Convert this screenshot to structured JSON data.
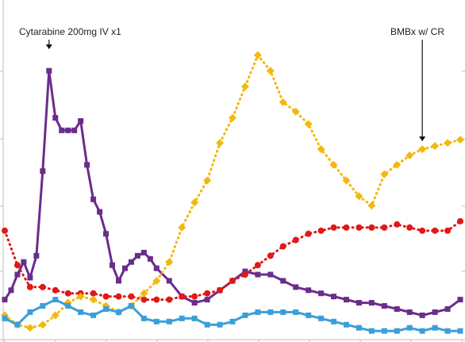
{
  "chart_data": {
    "type": "line",
    "title": "",
    "xlabel": "",
    "ylabel": "",
    "grid": false,
    "legend": "none",
    "ylim": [
      0,
      100
    ],
    "x": [
      0,
      1,
      2,
      3,
      4,
      5,
      6,
      7,
      8,
      9,
      10,
      11,
      12,
      13,
      14,
      15,
      16,
      17,
      18,
      19,
      20,
      21,
      22,
      23,
      24,
      25,
      26,
      27,
      28,
      29,
      30,
      31,
      32,
      33,
      34,
      35,
      36,
      37,
      38,
      39,
      40,
      41,
      42,
      43,
      44,
      45,
      46,
      47,
      48,
      49,
      50,
      51,
      52,
      53,
      54,
      55,
      56,
      57,
      58,
      59,
      60,
      61,
      62,
      63,
      64,
      65,
      66,
      67,
      68,
      69,
      70
    ],
    "series": [
      {
        "color": "#6A2D8C",
        "style": "solid",
        "marker": "square",
        "points": [
          [
            0,
            12
          ],
          [
            1,
            15
          ],
          [
            2,
            20
          ],
          [
            3,
            24
          ],
          [
            4,
            19
          ],
          [
            5,
            26
          ],
          [
            6,
            53
          ],
          [
            7,
            85
          ],
          [
            8,
            70
          ],
          [
            9,
            66
          ],
          [
            10,
            66
          ],
          [
            11,
            66
          ],
          [
            12,
            69
          ],
          [
            13,
            55
          ],
          [
            14,
            44
          ],
          [
            15,
            40
          ],
          [
            16,
            33
          ],
          [
            17,
            23
          ],
          [
            18,
            18
          ],
          [
            19,
            22
          ],
          [
            20,
            24
          ],
          [
            21,
            26
          ],
          [
            22,
            27
          ],
          [
            23,
            25
          ],
          [
            24,
            22
          ],
          [
            26,
            18
          ],
          [
            28,
            13
          ],
          [
            30,
            11
          ],
          [
            32,
            12
          ],
          [
            34,
            15
          ],
          [
            36,
            18
          ],
          [
            38,
            21
          ],
          [
            40,
            20
          ],
          [
            42,
            20
          ],
          [
            44,
            18
          ],
          [
            46,
            16
          ],
          [
            48,
            15
          ],
          [
            50,
            14
          ],
          [
            52,
            13
          ],
          [
            54,
            12
          ],
          [
            56,
            11
          ],
          [
            58,
            11
          ],
          [
            60,
            10
          ],
          [
            62,
            9
          ],
          [
            64,
            8
          ],
          [
            66,
            7
          ],
          [
            68,
            8
          ],
          [
            70,
            9
          ],
          [
            72,
            12
          ]
        ]
      },
      {
        "color": "#E01818",
        "style": "dotted",
        "marker": "circle",
        "points": [
          [
            0,
            34
          ],
          [
            2,
            23
          ],
          [
            4,
            16
          ],
          [
            6,
            16
          ],
          [
            8,
            15
          ],
          [
            10,
            14
          ],
          [
            12,
            14
          ],
          [
            14,
            14
          ],
          [
            16,
            13
          ],
          [
            18,
            13
          ],
          [
            20,
            13
          ],
          [
            22,
            12
          ],
          [
            24,
            12
          ],
          [
            26,
            12
          ],
          [
            28,
            13
          ],
          [
            30,
            13
          ],
          [
            32,
            14
          ],
          [
            34,
            15
          ],
          [
            36,
            18
          ],
          [
            38,
            20
          ],
          [
            40,
            23
          ],
          [
            42,
            26
          ],
          [
            44,
            29
          ],
          [
            46,
            31
          ],
          [
            48,
            33
          ],
          [
            50,
            34
          ],
          [
            52,
            35
          ],
          [
            54,
            35
          ],
          [
            56,
            35
          ],
          [
            58,
            35
          ],
          [
            60,
            35
          ],
          [
            62,
            36
          ],
          [
            64,
            35
          ],
          [
            66,
            34
          ],
          [
            68,
            34
          ],
          [
            70,
            34
          ],
          [
            72,
            37
          ]
        ]
      },
      {
        "color": "#F2B90D",
        "style": "dotted",
        "marker": "diamond",
        "points": [
          [
            0,
            7
          ],
          [
            2,
            4
          ],
          [
            4,
            3
          ],
          [
            6,
            4
          ],
          [
            8,
            7
          ],
          [
            10,
            11
          ],
          [
            12,
            13
          ],
          [
            14,
            12
          ],
          [
            16,
            10
          ],
          [
            18,
            8
          ],
          [
            20,
            10
          ],
          [
            22,
            14
          ],
          [
            24,
            18
          ],
          [
            26,
            24
          ],
          [
            28,
            35
          ],
          [
            30,
            43
          ],
          [
            32,
            50
          ],
          [
            34,
            62
          ],
          [
            36,
            70
          ],
          [
            38,
            80
          ],
          [
            40,
            90
          ],
          [
            42,
            85
          ],
          [
            44,
            75
          ],
          [
            46,
            72
          ],
          [
            48,
            68
          ],
          [
            50,
            60
          ],
          [
            52,
            55
          ],
          [
            54,
            50
          ],
          [
            56,
            45
          ],
          [
            58,
            42
          ],
          [
            60,
            52
          ],
          [
            62,
            55
          ],
          [
            64,
            58
          ],
          [
            66,
            60
          ],
          [
            68,
            61
          ],
          [
            70,
            62
          ],
          [
            72,
            63
          ]
        ]
      },
      {
        "color": "#3A9FD8",
        "style": "solid",
        "marker": "square",
        "points": [
          [
            0,
            6
          ],
          [
            2,
            4
          ],
          [
            4,
            8
          ],
          [
            6,
            10
          ],
          [
            8,
            12
          ],
          [
            10,
            10
          ],
          [
            12,
            8
          ],
          [
            14,
            7
          ],
          [
            16,
            9
          ],
          [
            18,
            8
          ],
          [
            20,
            10
          ],
          [
            22,
            6
          ],
          [
            24,
            5
          ],
          [
            26,
            5
          ],
          [
            28,
            6
          ],
          [
            30,
            6
          ],
          [
            32,
            4
          ],
          [
            34,
            4
          ],
          [
            36,
            5
          ],
          [
            38,
            7
          ],
          [
            40,
            8
          ],
          [
            42,
            8
          ],
          [
            44,
            8
          ],
          [
            46,
            8
          ],
          [
            48,
            7
          ],
          [
            50,
            6
          ],
          [
            52,
            5
          ],
          [
            54,
            4
          ],
          [
            56,
            3
          ],
          [
            58,
            2
          ],
          [
            60,
            2
          ],
          [
            62,
            2
          ],
          [
            64,
            3
          ],
          [
            66,
            2
          ],
          [
            68,
            3
          ],
          [
            70,
            2
          ],
          [
            72,
            2
          ]
        ]
      }
    ],
    "annotations": [
      {
        "text": "Cytarabine 200mg IV x1",
        "x": 7,
        "arrow": "down"
      },
      {
        "text": "BMBx w/ CR",
        "x": 66,
        "arrow": "down"
      }
    ]
  }
}
